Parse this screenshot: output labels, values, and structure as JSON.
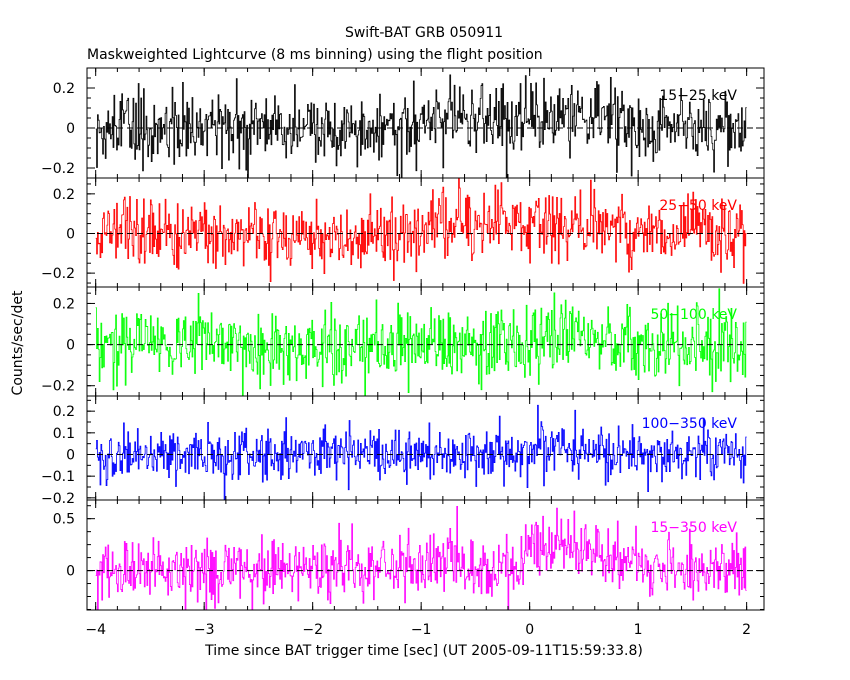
{
  "chart_data": {
    "type": "line",
    "title": "Swift-BAT GRB 050911",
    "subtitle": "Maskweighted Lightcurve (8 ms binning) using the flight position",
    "xlabel": "Time since BAT trigger time [sec] (UT 2005-09-11T15:59:33.8)",
    "ylabel": "Counts/sec/det",
    "xlim": [
      -4.08,
      2.16
    ],
    "bin_width_sec": 0.008,
    "x_ticks": [
      -4,
      -3,
      -2,
      -1,
      0,
      1,
      2
    ],
    "x_tick_labels": [
      "−4",
      "−3",
      "−2",
      "−1",
      "0",
      "1",
      "2"
    ],
    "panels": [
      {
        "name": "15-25 keV",
        "label": "15−25 keV",
        "color": "#000000",
        "ylim": [
          -0.25,
          0.3
        ],
        "yticks": [
          -0.2,
          0,
          0.2
        ],
        "ytick_labels": [
          "−0.2",
          "0",
          "0.2"
        ],
        "noise_amplitude": 0.09,
        "enhanced_segments": [
          {
            "start": -1.0,
            "end": 0.9,
            "level": 0.06
          }
        ]
      },
      {
        "name": "25-50 keV",
        "label": "25−50 keV",
        "color": "#ff0000",
        "ylim": [
          -0.27,
          0.28
        ],
        "yticks": [
          -0.2,
          0,
          0.2
        ],
        "ytick_labels": [
          "−0.2",
          "0",
          "0.2"
        ],
        "noise_amplitude": 0.09,
        "enhanced_segments": [
          {
            "start": -0.9,
            "end": 0.9,
            "level": 0.05
          }
        ]
      },
      {
        "name": "50-100 keV",
        "label": "50−100 keV",
        "color": "#00ff00",
        "ylim": [
          -0.25,
          0.28
        ],
        "yticks": [
          -0.2,
          0,
          0.2
        ],
        "ytick_labels": [
          "−0.2",
          "0",
          "0.2"
        ],
        "noise_amplitude": 0.09,
        "enhanced_segments": [
          {
            "start": 0.0,
            "end": 0.6,
            "level": 0.04
          }
        ]
      },
      {
        "name": "100-350 keV",
        "label": "100−350 keV",
        "color": "#0000ff",
        "ylim": [
          -0.21,
          0.27
        ],
        "yticks": [
          -0.2,
          -0.1,
          0,
          0.1,
          0.2
        ],
        "ytick_labels": [
          "−0.2",
          "−0.1",
          "0",
          "0.1",
          "0.2"
        ],
        "noise_amplitude": 0.06,
        "enhanced_segments": [
          {
            "start": 0.0,
            "end": 0.5,
            "level": 0.03
          }
        ]
      },
      {
        "name": "15-350 keV",
        "label": "15−350 keV",
        "color": "#ff00ff",
        "ylim": [
          -0.38,
          0.68
        ],
        "yticks": [
          0,
          0.5
        ],
        "ytick_labels": [
          "0",
          "0.5"
        ],
        "noise_amplitude": 0.16,
        "enhanced_segments": [
          {
            "start": -0.9,
            "end": -0.6,
            "level": 0.12
          },
          {
            "start": -0.05,
            "end": 0.65,
            "level": 0.22
          },
          {
            "start": 0.65,
            "end": 1.0,
            "level": 0.08
          }
        ]
      }
    ],
    "zero_line": "dashed",
    "grid": false
  }
}
